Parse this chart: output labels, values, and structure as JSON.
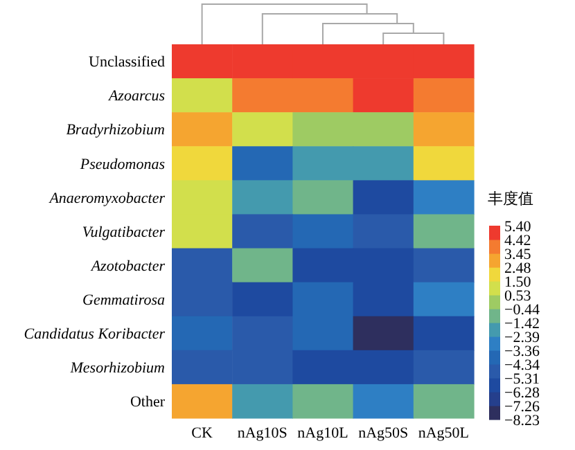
{
  "chart_data": {
    "type": "heatmap",
    "clabel": "丰度值",
    "categories": [
      "CK",
      "nAg10S",
      "nAg10L",
      "nAg50S",
      "nAg50L"
    ],
    "y_categories": [
      "Unclassified",
      "Azoarcus",
      "Bradyrhizobium",
      "Pseudomonas",
      "Anaeromyxobacter",
      "Vulgatibacter",
      "Azotobacter",
      "Gemmatirosa",
      "Candidatus Koribacter",
      "Mesorhizobium",
      "Other"
    ],
    "cells": [
      [
        5.0,
        5.0,
        5.0,
        5.0,
        5.0
      ],
      [
        1.0,
        3.9,
        3.9,
        5.0,
        3.9
      ],
      [
        3.0,
        1.0,
        0.0,
        0.0,
        3.0
      ],
      [
        2.0,
        -3.9,
        -1.9,
        -1.9,
        2.0
      ],
      [
        1.0,
        -1.9,
        -0.9,
        -5.8,
        -2.9
      ],
      [
        1.0,
        -4.8,
        -3.9,
        -4.8,
        -0.9
      ],
      [
        -4.8,
        -0.9,
        -5.8,
        -5.8,
        -4.8
      ],
      [
        -4.8,
        -5.8,
        -3.9,
        -5.8,
        -2.9
      ],
      [
        -3.9,
        -4.8,
        -3.9,
        -7.7,
        -5.8
      ],
      [
        -4.8,
        -4.8,
        -5.8,
        -5.8,
        -4.8
      ],
      [
        3.0,
        -1.9,
        -0.9,
        -2.9,
        -0.9
      ]
    ],
    "clim": [
      -8.23,
      5.4
    ],
    "cticks": [
      {
        "value": 5.4,
        "label": "5.40"
      },
      4.42,
      3.45,
      2.48,
      {
        "value": 1.5,
        "label": "1.50"
      },
      0.53,
      {
        "value": -0.44,
        "label": "−0.44"
      },
      {
        "value": -1.42,
        "label": "−1.42"
      },
      {
        "value": -2.39,
        "label": "−2.39"
      },
      {
        "value": -3.36,
        "label": "−3.36"
      },
      {
        "value": -4.34,
        "label": "−4.34"
      },
      {
        "value": -5.31,
        "label": "−5.31"
      },
      {
        "value": -6.28,
        "label": "−6.28"
      },
      {
        "value": -7.26,
        "label": "−7.26"
      },
      {
        "value": -8.23,
        "label": "−8.23"
      }
    ]
  }
}
